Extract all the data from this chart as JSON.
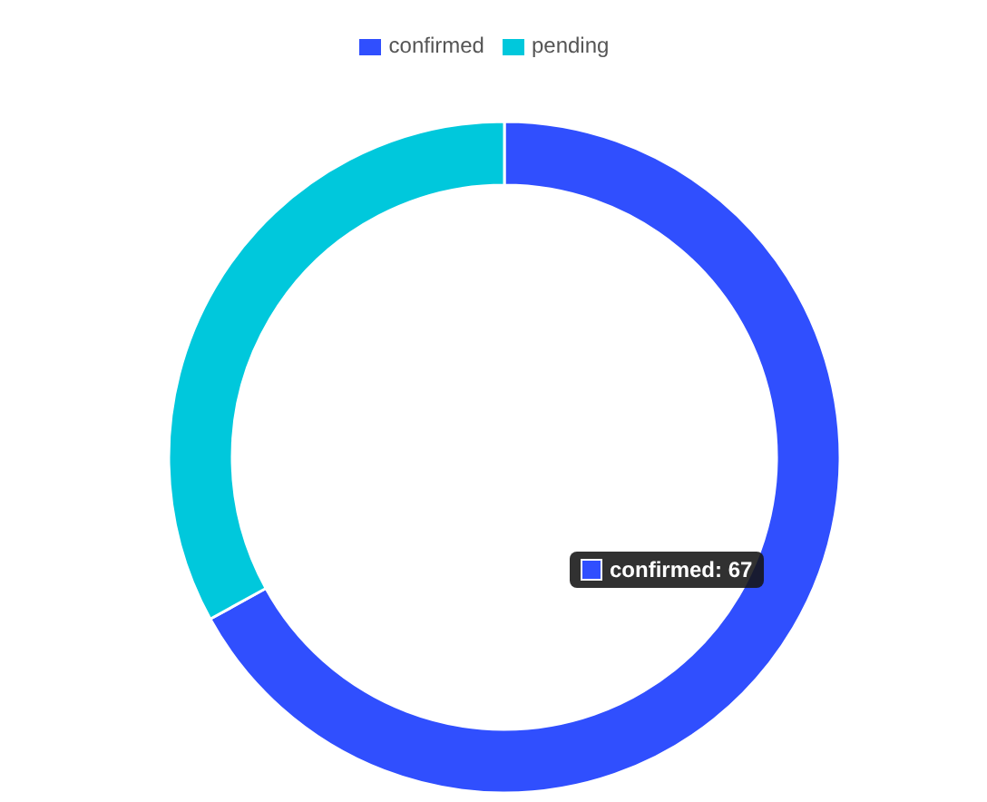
{
  "chart_data": {
    "type": "donut",
    "categories": [
      "confirmed",
      "pending"
    ],
    "values": [
      67,
      33
    ],
    "colors": [
      "#304ffe",
      "#00c8dc"
    ],
    "legend": "top",
    "annotations": [
      "confirmed: 67"
    ]
  }
}
